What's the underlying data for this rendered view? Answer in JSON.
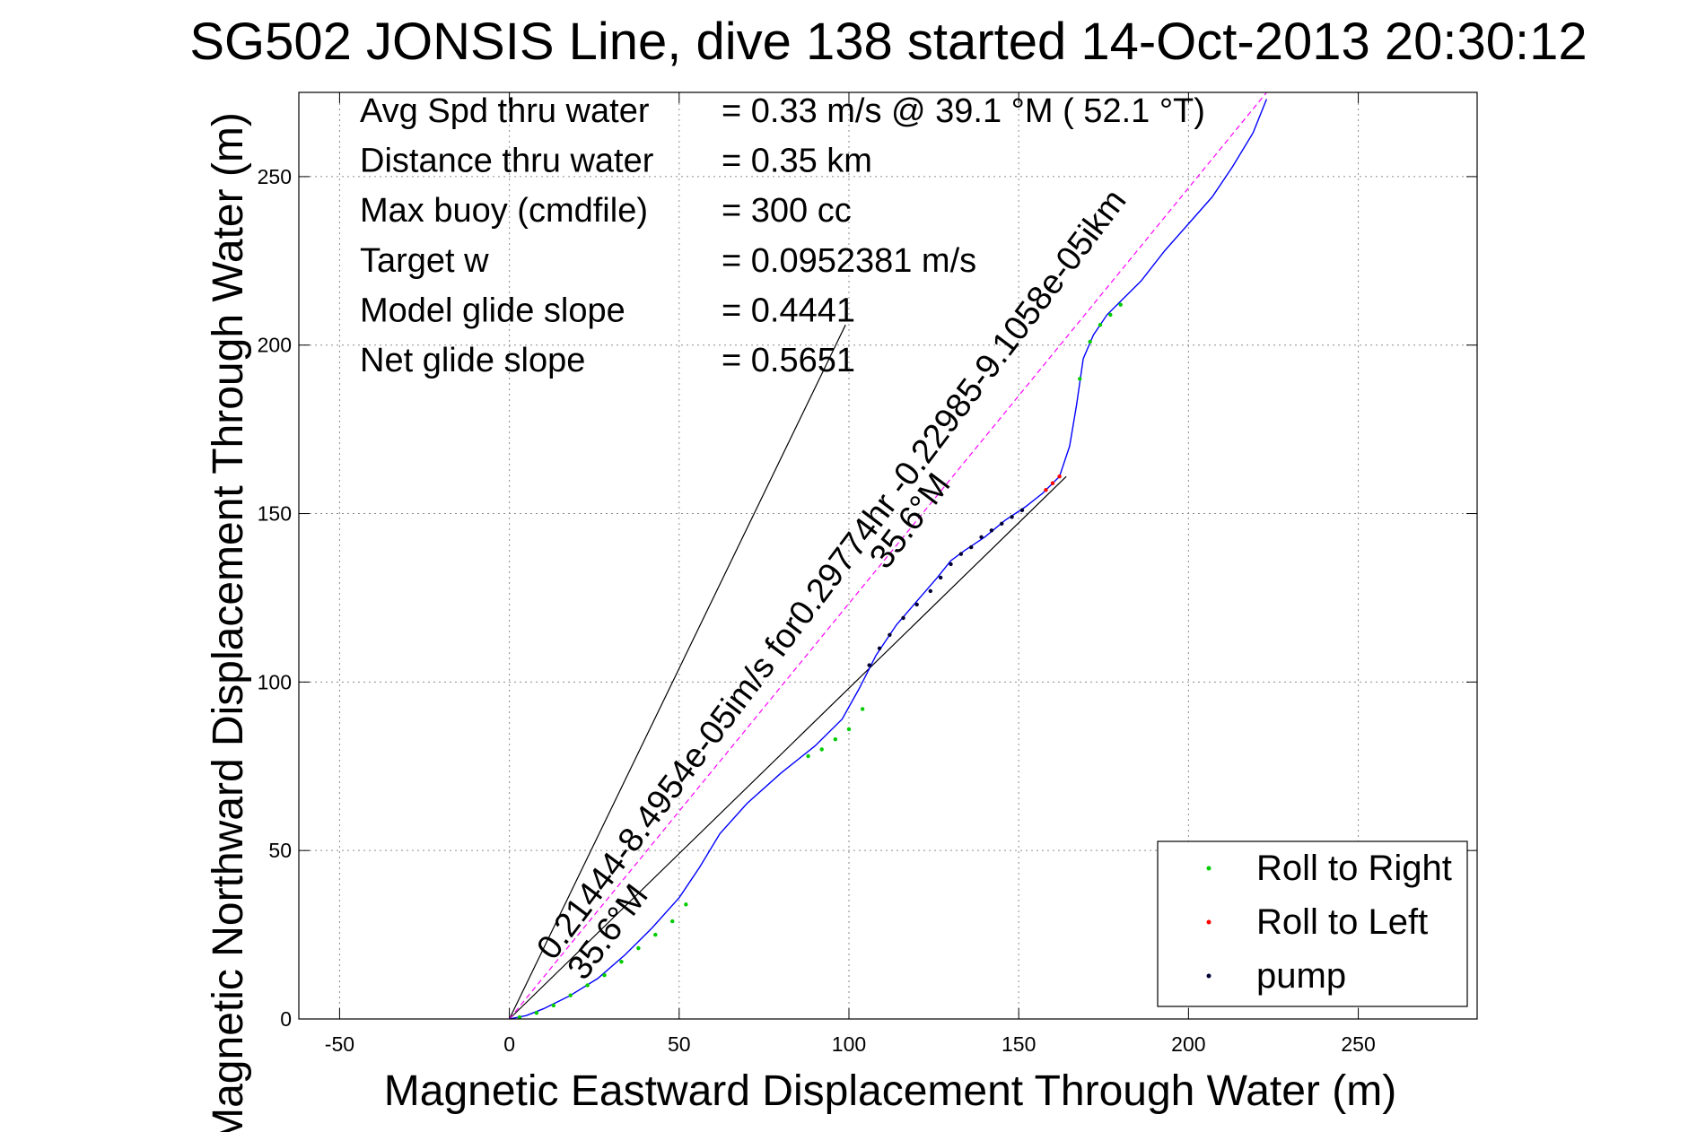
{
  "chart_data": {
    "type": "line",
    "title": "SG502 JONSIS Line, dive 138 started 14-Oct-2013 20:30:12",
    "xlabel": "Magnetic Eastward Displacement Through Water (m)",
    "ylabel": "Magnetic Northward Displacement Through Water (m)",
    "xlim": [
      -62,
      285
    ],
    "ylim": [
      0,
      275
    ],
    "xticks": [
      -50,
      0,
      50,
      100,
      150,
      200,
      250
    ],
    "yticks": [
      0,
      50,
      100,
      150,
      200,
      250
    ],
    "grid": true,
    "legend_placement": "bottom-right",
    "stats": [
      {
        "label": "Avg Spd thru water",
        "value": "=  0.33 m/s @  39.1 °M ( 52.1 °T)"
      },
      {
        "label": "Distance thru water",
        "value": "=  0.35 km"
      },
      {
        "label": "Max buoy (cmdfile)",
        "value": "= 300 cc"
      },
      {
        "label": "Target w",
        "value": "= 0.0952381 m/s"
      },
      {
        "label": "Model glide slope",
        "value": "= 0.4441"
      },
      {
        "label": "Net glide slope",
        "value": "= 0.5651"
      }
    ],
    "annotations": [
      {
        "text": "0.21444-8.4954e-05im/s for0.29774hr -0.22985-9.1058e-05ikm",
        "color": "#000000"
      },
      {
        "text": "35.6°M",
        "color": "#000000"
      },
      {
        "text": "35.6°M",
        "color": "#000000"
      }
    ],
    "series": [
      {
        "name": "track",
        "color": "#0000ff",
        "x": [
          0,
          5,
          10,
          18,
          26,
          34,
          42,
          50,
          56,
          62,
          70,
          80,
          90,
          98,
          103,
          108,
          114,
          120,
          126,
          130,
          134,
          140,
          146,
          152,
          157,
          162,
          165,
          167,
          169,
          172,
          176,
          180,
          186,
          193,
          200,
          207,
          213,
          219,
          223
        ],
        "y": [
          0,
          1,
          3,
          7,
          12,
          19,
          27,
          36,
          45,
          55,
          64,
          73,
          81,
          89,
          98,
          108,
          117,
          124,
          131,
          136,
          139,
          143,
          148,
          152,
          156,
          161,
          170,
          182,
          196,
          203,
          209,
          213,
          219,
          228,
          236,
          244,
          253,
          263,
          273
        ]
      },
      {
        "name": "Roll to Right",
        "color": "#00cc00",
        "x": [
          3,
          8,
          13,
          18,
          23,
          28,
          33,
          38,
          43,
          48,
          52,
          88,
          92,
          96,
          100,
          104,
          168,
          171,
          174,
          177,
          180
        ],
        "y": [
          0.5,
          1.8,
          4,
          7,
          10,
          13,
          17,
          21,
          25,
          29,
          34,
          78,
          80,
          83,
          86,
          92,
          190,
          201,
          206,
          209,
          212
        ]
      },
      {
        "name": "Roll to Left",
        "color": "#ff0000",
        "x": [
          158,
          160,
          162
        ],
        "y": [
          157,
          159,
          161
        ]
      },
      {
        "name": "pump",
        "color": "#000033",
        "x": [
          106,
          109,
          112,
          116,
          120,
          124,
          127,
          130,
          133,
          136,
          139,
          142,
          145,
          148,
          151
        ],
        "y": [
          105,
          110,
          114,
          119,
          123,
          127,
          131,
          135,
          138,
          140,
          143,
          145,
          147,
          149,
          151
        ]
      }
    ],
    "reference_lines": [
      {
        "name": "model-glide-line",
        "color": "#000000",
        "x": [
          0,
          99
        ],
        "y": [
          0,
          206
        ]
      },
      {
        "name": "net-glide-line",
        "color": "#000000",
        "x": [
          0,
          164
        ],
        "y": [
          0,
          161
        ]
      },
      {
        "name": "average-heading-line",
        "color": "#ff00ff",
        "x": [
          0,
          223
        ],
        "y": [
          0,
          275
        ]
      }
    ],
    "legend": [
      {
        "label": "Roll to Right",
        "color": "#00cc00"
      },
      {
        "label": "Roll to Left",
        "color": "#ff0000"
      },
      {
        "label": "pump",
        "color": "#000033"
      }
    ]
  }
}
